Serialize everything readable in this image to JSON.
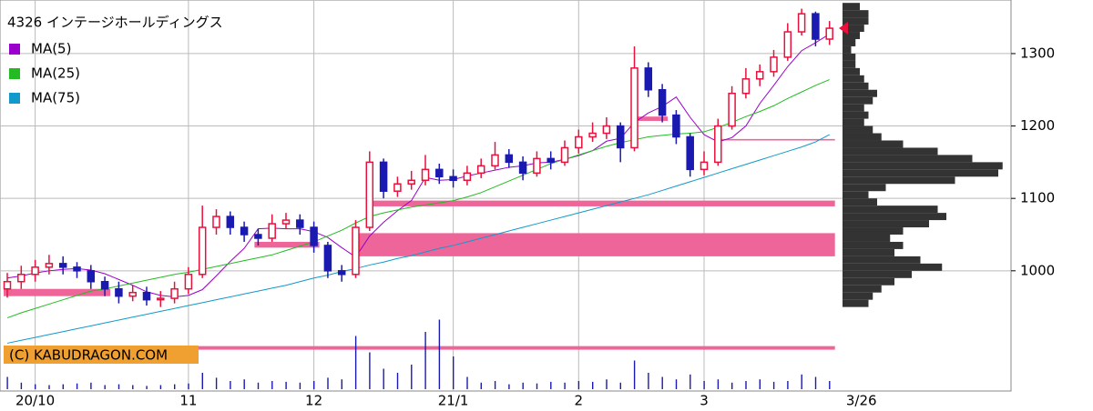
{
  "chart_data": {
    "type": "candlestick",
    "title": "4326 インテージホールディングス",
    "categories": [
      null,
      null,
      "20/10",
      null,
      null,
      null,
      null,
      null,
      null,
      null,
      null,
      null,
      null,
      "11",
      null,
      null,
      null,
      null,
      null,
      null,
      null,
      null,
      "12",
      null,
      null,
      null,
      null,
      null,
      null,
      null,
      null,
      null,
      "21/1",
      null,
      null,
      null,
      null,
      null,
      null,
      null,
      null,
      "2",
      null,
      null,
      null,
      null,
      null,
      null,
      null,
      null,
      "3",
      null,
      null,
      null,
      null,
      null,
      null,
      null,
      null,
      "3/26"
    ],
    "open": [
      975,
      985,
      995,
      1005,
      1010,
      1005,
      1000,
      985,
      975,
      965,
      970,
      960,
      962,
      975,
      995,
      1060,
      1075,
      1060,
      1050,
      1045,
      1065,
      1070,
      1060,
      1035,
      1000,
      995,
      1060,
      1150,
      1110,
      1120,
      1125,
      1140,
      1130,
      1125,
      1135,
      1145,
      1160,
      1150,
      1135,
      1155,
      1150,
      1170,
      1185,
      1190,
      1200,
      1170,
      1280,
      1250,
      1215,
      1185,
      1140,
      1150,
      1200,
      1245,
      1265,
      1275,
      1295,
      1330,
      1355,
      1320
    ],
    "high": [
      997,
      1007,
      1015,
      1022,
      1020,
      1012,
      1008,
      992,
      985,
      980,
      978,
      972,
      985,
      1005,
      1090,
      1085,
      1082,
      1068,
      1058,
      1078,
      1080,
      1078,
      1068,
      1040,
      1008,
      1070,
      1165,
      1155,
      1130,
      1138,
      1160,
      1148,
      1140,
      1145,
      1155,
      1178,
      1168,
      1158,
      1165,
      1165,
      1180,
      1195,
      1205,
      1212,
      1205,
      1310,
      1288,
      1258,
      1222,
      1190,
      1165,
      1210,
      1255,
      1280,
      1285,
      1305,
      1342,
      1362,
      1358,
      1345
    ],
    "low": [
      963,
      975,
      985,
      995,
      995,
      990,
      975,
      965,
      955,
      958,
      952,
      950,
      955,
      968,
      990,
      1050,
      1050,
      1040,
      1035,
      1040,
      1058,
      1050,
      1025,
      990,
      985,
      990,
      1055,
      1100,
      1102,
      1112,
      1118,
      1120,
      1115,
      1118,
      1128,
      1140,
      1142,
      1125,
      1130,
      1140,
      1145,
      1162,
      1178,
      1182,
      1150,
      1165,
      1240,
      1205,
      1175,
      1130,
      1132,
      1145,
      1195,
      1238,
      1255,
      1268,
      1290,
      1325,
      1310,
      1312
    ],
    "close": [
      985,
      995,
      1005,
      1010,
      1005,
      1000,
      985,
      975,
      965,
      970,
      960,
      962,
      975,
      995,
      1060,
      1075,
      1060,
      1050,
      1045,
      1065,
      1070,
      1060,
      1035,
      1000,
      995,
      1060,
      1150,
      1110,
      1120,
      1125,
      1140,
      1130,
      1125,
      1135,
      1145,
      1160,
      1150,
      1135,
      1155,
      1150,
      1170,
      1185,
      1190,
      1200,
      1170,
      1280,
      1250,
      1215,
      1185,
      1140,
      1150,
      1200,
      1245,
      1265,
      1275,
      1295,
      1330,
      1355,
      1320,
      1335
    ],
    "up_color": "#e8103c",
    "down_color": "#1a1ab0",
    "ylim": [
      834,
      1374
    ],
    "yticks": [
      1000,
      1100,
      1200,
      1300
    ],
    "grid": true,
    "series": [
      {
        "name": "MA(5)",
        "color": "#9900cc",
        "values": [
          990,
          993,
          997,
          1000,
          1002,
          1003,
          1001,
          996,
          988,
          980,
          971,
          966,
          964,
          966,
          974,
          993,
          1013,
          1031,
          1058,
          1059,
          1058,
          1058,
          1054,
          1046,
          1032,
          1019,
          1048,
          1067,
          1083,
          1097,
          1129,
          1125,
          1126,
          1131,
          1135,
          1139,
          1143,
          1145,
          1149,
          1150,
          1154,
          1159,
          1166,
          1179,
          1183,
          1205,
          1218,
          1227,
          1240,
          1212,
          1188,
          1178,
          1184,
          1200,
          1231,
          1256,
          1282,
          1304,
          1315,
          1327
        ]
      },
      {
        "name": "MA(25)",
        "color": "#22bb22",
        "values": [
          935,
          942,
          948,
          954,
          960,
          966,
          972,
          975,
          979,
          983,
          987,
          991,
          995,
          998,
          1002,
          1006,
          1010,
          1014,
          1018,
          1022,
          1028,
          1034,
          1040,
          1048,
          1056,
          1066,
          1075,
          1080,
          1084,
          1088,
          1091,
          1094,
          1097,
          1102,
          1108,
          1116,
          1124,
          1132,
          1140,
          1148,
          1154,
          1160,
          1166,
          1172,
          1177,
          1181,
          1185,
          1187,
          1189,
          1190,
          1192,
          1198,
          1205,
          1213,
          1220,
          1228,
          1238,
          1247,
          1256,
          1264
        ]
      },
      {
        "name": "MA(75)",
        "color": "#1199cc",
        "values": [
          900,
          904,
          908,
          912,
          916,
          920,
          924,
          928,
          932,
          936,
          940,
          944,
          948,
          952,
          956,
          960,
          964,
          968,
          972,
          976,
          980,
          985,
          990,
          994,
          999,
          1003,
          1008,
          1012,
          1017,
          1021,
          1026,
          1031,
          1035,
          1040,
          1045,
          1050,
          1055,
          1060,
          1065,
          1070,
          1075,
          1080,
          1085,
          1090,
          1095,
          1100,
          1105,
          1111,
          1117,
          1123,
          1129,
          1135,
          1141,
          1147,
          1153,
          1159,
          1165,
          1171,
          1178,
          1188
        ]
      }
    ],
    "volume": {
      "color": "#1a1ab0",
      "lim": [
        0,
        100
      ],
      "values": [
        15,
        8,
        6,
        5,
        6,
        7,
        8,
        5,
        6,
        5,
        4,
        5,
        6,
        7,
        20,
        14,
        10,
        12,
        8,
        10,
        9,
        8,
        10,
        14,
        12,
        65,
        45,
        25,
        20,
        30,
        70,
        85,
        40,
        15,
        8,
        10,
        6,
        8,
        7,
        9,
        8,
        10,
        9,
        12,
        8,
        35,
        20,
        15,
        12,
        18,
        10,
        12,
        8,
        10,
        12,
        9,
        10,
        18,
        15,
        10
      ]
    },
    "bands": {
      "color": "#ee6699",
      "items": [
        {
          "start": 0,
          "end": 7,
          "low": 965,
          "high": 975
        },
        {
          "start": 18,
          "end": 22,
          "low": 1032,
          "high": 1040
        },
        {
          "start": 26,
          "end": 59,
          "low": 1089,
          "high": 1097
        },
        {
          "start": 25,
          "end": 59,
          "low": 1020,
          "high": 1052
        },
        {
          "start": 45,
          "end": 47,
          "low": 1207,
          "high": 1213
        },
        {
          "start": 51,
          "end": 59,
          "low": 1180,
          "high": 1182
        },
        {
          "start": 0,
          "end": 59,
          "low": 891,
          "high": 896
        }
      ]
    },
    "volume_profile": {
      "color": "#333333",
      "lim": [
        0,
        200
      ],
      "bins": [
        950,
        960,
        970,
        980,
        990,
        1000,
        1010,
        1020,
        1030,
        1040,
        1050,
        1060,
        1070,
        1080,
        1090,
        1100,
        1110,
        1120,
        1130,
        1140,
        1150,
        1160,
        1170,
        1180,
        1190,
        1200,
        1210,
        1220,
        1230,
        1240,
        1250,
        1260,
        1270,
        1280,
        1290,
        1300,
        1310,
        1320,
        1330,
        1340,
        1350,
        1360,
        1370
      ],
      "counts": [
        30,
        35,
        45,
        60,
        80,
        115,
        90,
        60,
        70,
        55,
        70,
        100,
        120,
        110,
        40,
        30,
        50,
        130,
        180,
        185,
        150,
        110,
        70,
        45,
        35,
        25,
        30,
        25,
        35,
        40,
        30,
        25,
        20,
        15,
        15,
        10,
        15,
        20,
        25,
        30,
        30,
        20
      ]
    },
    "copyright": "(C) KABUDRAGON.COM"
  }
}
